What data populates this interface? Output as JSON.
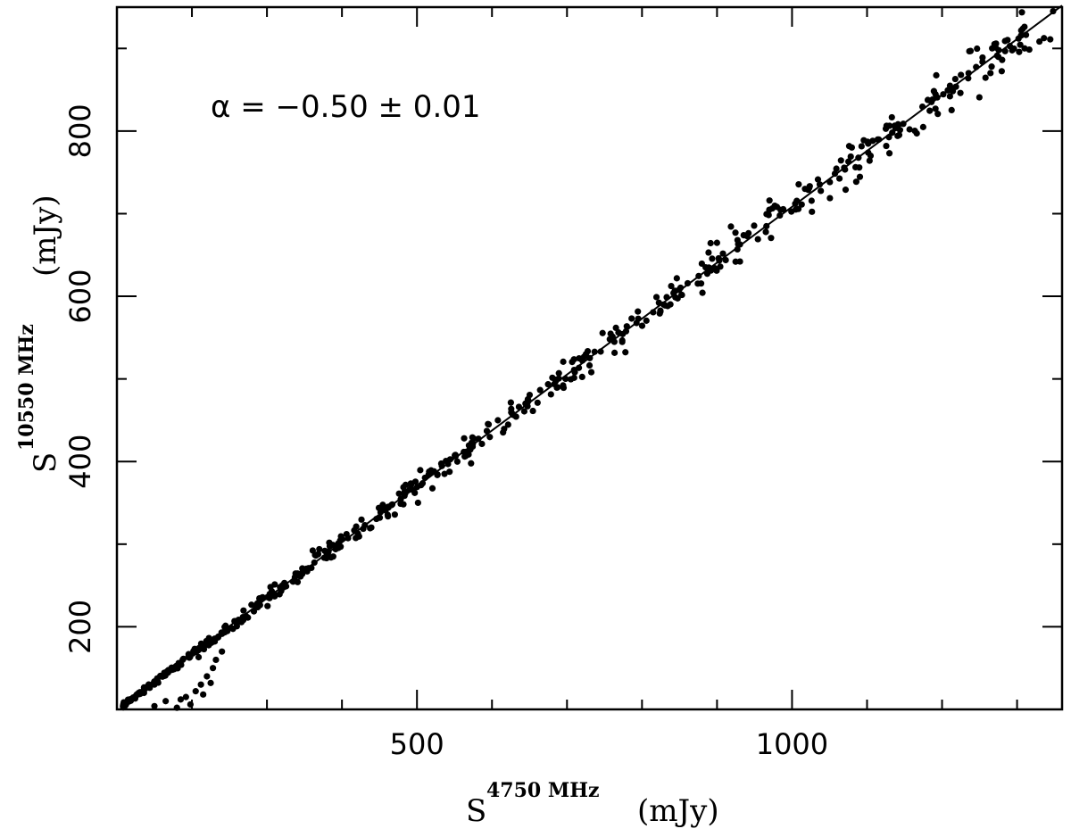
{
  "chart_data": {
    "type": "scatter",
    "title": "",
    "xlabel": {
      "main": "S",
      "superscript": "4750 MHz",
      "unit": "(mJy)"
    },
    "ylabel": {
      "main": "S",
      "superscript": "10550 MHz",
      "unit": "(mJy)"
    },
    "xlim": [
      100,
      1360
    ],
    "ylim": [
      100,
      950
    ],
    "x_ticks": [
      500,
      1000
    ],
    "y_ticks": [
      200,
      400,
      600,
      800
    ],
    "x_major_tick_step": 500,
    "x_minor_tick_step": 100,
    "y_major_tick_step": 200,
    "y_minor_tick_step": 100,
    "grid": false,
    "annotation": "α  =  −0.50  ±  0.01",
    "fit_line": {
      "spectral_index": -0.5,
      "x_start": 110,
      "x_end": 1360,
      "y_start": 106,
      "y_end": 952
    },
    "scatter_series": {
      "main_sequence": {
        "x_range": [
          108,
          1350
        ],
        "relative_scatter": 0.018,
        "approx_count": 560
      },
      "low_outliers": [
        {
          "x": 180,
          "y": 102
        },
        {
          "x": 198,
          "y": 106
        },
        {
          "x": 192,
          "y": 115
        },
        {
          "x": 205,
          "y": 122
        },
        {
          "x": 212,
          "y": 130
        },
        {
          "x": 220,
          "y": 140
        },
        {
          "x": 228,
          "y": 150
        },
        {
          "x": 232,
          "y": 160
        },
        {
          "x": 240,
          "y": 170
        },
        {
          "x": 185,
          "y": 112
        },
        {
          "x": 215,
          "y": 118
        },
        {
          "x": 225,
          "y": 132
        },
        {
          "x": 150,
          "y": 104
        },
        {
          "x": 165,
          "y": 110
        }
      ]
    }
  }
}
